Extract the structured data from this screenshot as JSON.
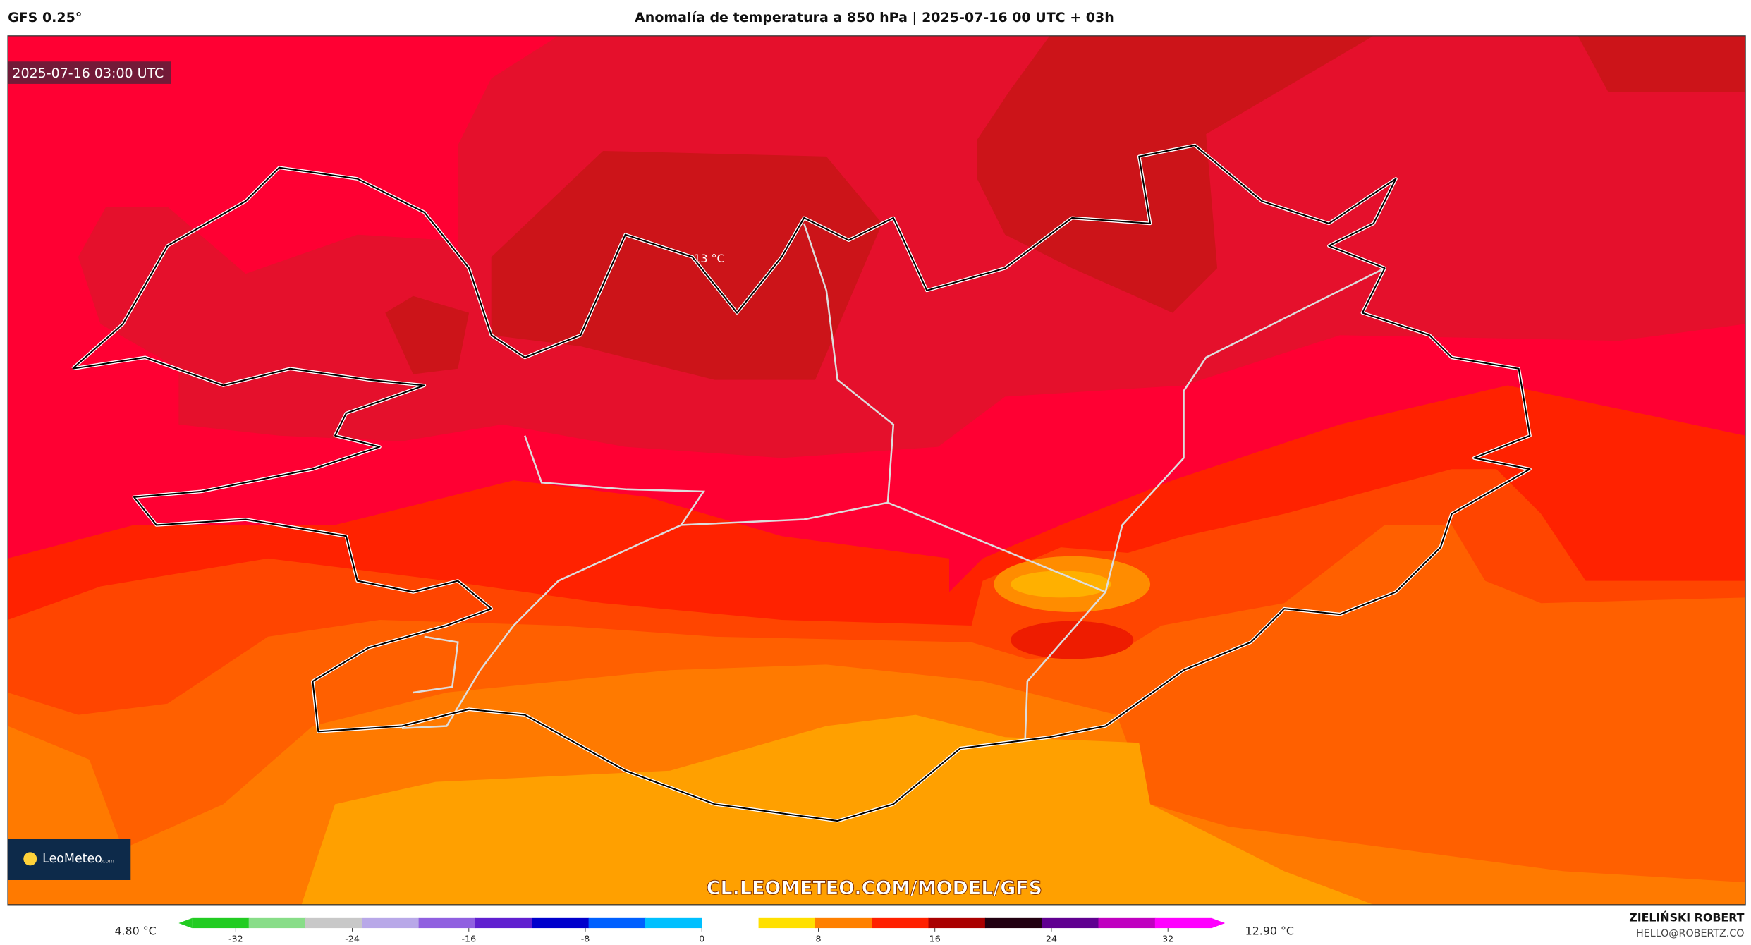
{
  "header": {
    "model": "GFS 0.25°",
    "title": "Anomalía de temperatura a 850 hPa | 2025-07-16 00 UTC + 03h"
  },
  "map": {
    "timestamp": "2025-07-16 03:00 UTC",
    "contour_label": "13 °C",
    "watermark": "CL.LEOMETEO.COM/MODEL/GFS",
    "logo": "LeoMeteo",
    "logo_suffix": ".com"
  },
  "colorbar": {
    "min_label": "4.80 °C",
    "max_label": "12.90 °C",
    "lim": [
      -35,
      35
    ],
    "ticks": [
      -32,
      -24,
      -16,
      -8,
      0,
      8,
      16,
      24,
      32
    ],
    "colors": [
      "#22cc22",
      "#88dd88",
      "#c8c8c8",
      "#b8a8e8",
      "#9060e0",
      "#6020d0",
      "#0000cc",
      "#0060ff",
      "#00c0ff",
      "#ffffff",
      "#ffe000",
      "#ff8000",
      "#ff2000",
      "#aa0000",
      "#220011",
      "#600090",
      "#c000c0",
      "#ff00ff"
    ]
  },
  "footer": {
    "author": "ZIELIŃSKI ROBERT",
    "email": "HELLO@ROBERTZ.CO"
  }
}
